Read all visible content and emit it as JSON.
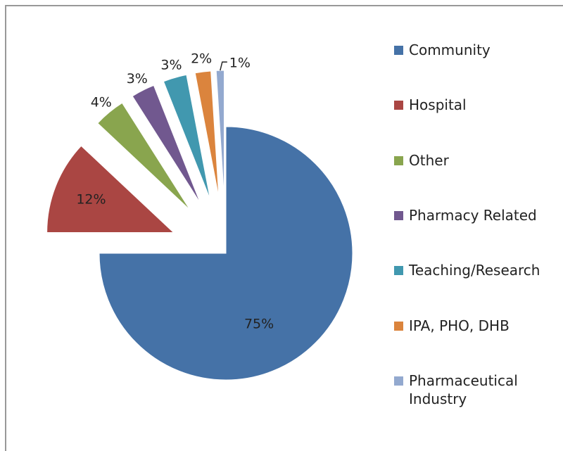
{
  "chart_data": {
    "type": "pie",
    "categories": [
      "Community",
      "Hospital",
      "Other",
      "Pharmacy Related",
      "Teaching/Research",
      "IPA, PHO, DHB",
      "Pharmaceutical Industry"
    ],
    "values": [
      75,
      12,
      4,
      3,
      3,
      2,
      1
    ],
    "value_labels": [
      "75%",
      "12%",
      "4%",
      "3%",
      "3%",
      "2%",
      "1%"
    ],
    "colors": [
      "#4572a7",
      "#aa4643",
      "#89a54e",
      "#71588f",
      "#4198af",
      "#db843d",
      "#93a9cf"
    ],
    "legend": "right"
  }
}
